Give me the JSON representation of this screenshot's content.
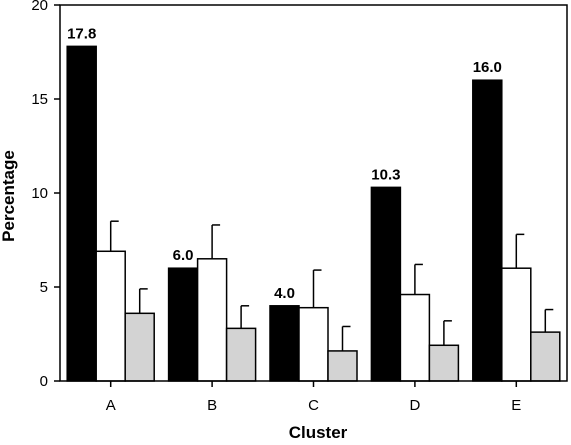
{
  "chart_data": {
    "type": "bar",
    "title": "",
    "xlabel": "Cluster",
    "ylabel": "Percentage",
    "ylim": [
      0,
      20
    ],
    "yticks": [
      0,
      5,
      10,
      15,
      20
    ],
    "categories": [
      "A",
      "B",
      "C",
      "D",
      "E"
    ],
    "grid": false,
    "legend": "none",
    "series": [
      {
        "color": "#000000",
        "values": [
          17.8,
          6.0,
          4.0,
          10.3,
          16.0
        ],
        "data_labels": [
          "17.8",
          "6.0",
          "4.0",
          "10.3",
          "16.0"
        ]
      },
      {
        "color": "#ffffff",
        "values": [
          6.9,
          6.5,
          3.9,
          4.6,
          6.0
        ],
        "error_upper": [
          1.6,
          1.8,
          2.0,
          1.6,
          1.8
        ]
      },
      {
        "color": "#d3d3d3",
        "values": [
          3.6,
          2.8,
          1.6,
          1.9,
          2.6
        ],
        "error_upper": [
          1.3,
          1.2,
          1.3,
          1.3,
          1.2
        ]
      }
    ]
  }
}
